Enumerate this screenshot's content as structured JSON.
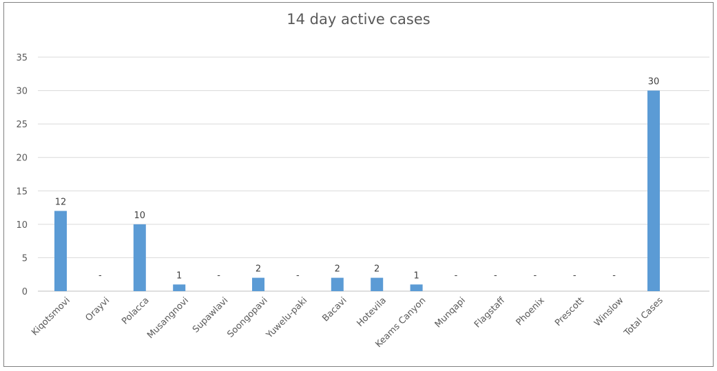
{
  "chart_data": {
    "type": "bar",
    "title": "14 day active cases",
    "categories": [
      "Kiqotsmovi",
      "Orayvi",
      "Polacca",
      "Musangnovi",
      "Supawlavi",
      "Soongopavi",
      "Yuwelu-paki",
      "Bacavi",
      "Hotevila",
      "Keams Canyon",
      "Munqapi",
      "Flagstaff",
      "Phoenix",
      "Prescott",
      "Winslow",
      "Total Cases"
    ],
    "values": [
      12,
      0,
      10,
      1,
      0,
      2,
      0,
      2,
      2,
      1,
      0,
      0,
      0,
      0,
      0,
      30
    ],
    "data_labels": [
      "12",
      "-",
      "10",
      "1",
      "-",
      "2",
      "-",
      "2",
      "2",
      "1",
      "-",
      "-",
      "-",
      "-",
      "-",
      "30"
    ],
    "yticks": [
      "0",
      "5",
      "10",
      "15",
      "20",
      "25",
      "30",
      "35"
    ],
    "ylim": [
      0,
      35
    ],
    "grid": true,
    "xlabel": "",
    "ylabel": "",
    "bar_color": "#5b9bd5"
  }
}
